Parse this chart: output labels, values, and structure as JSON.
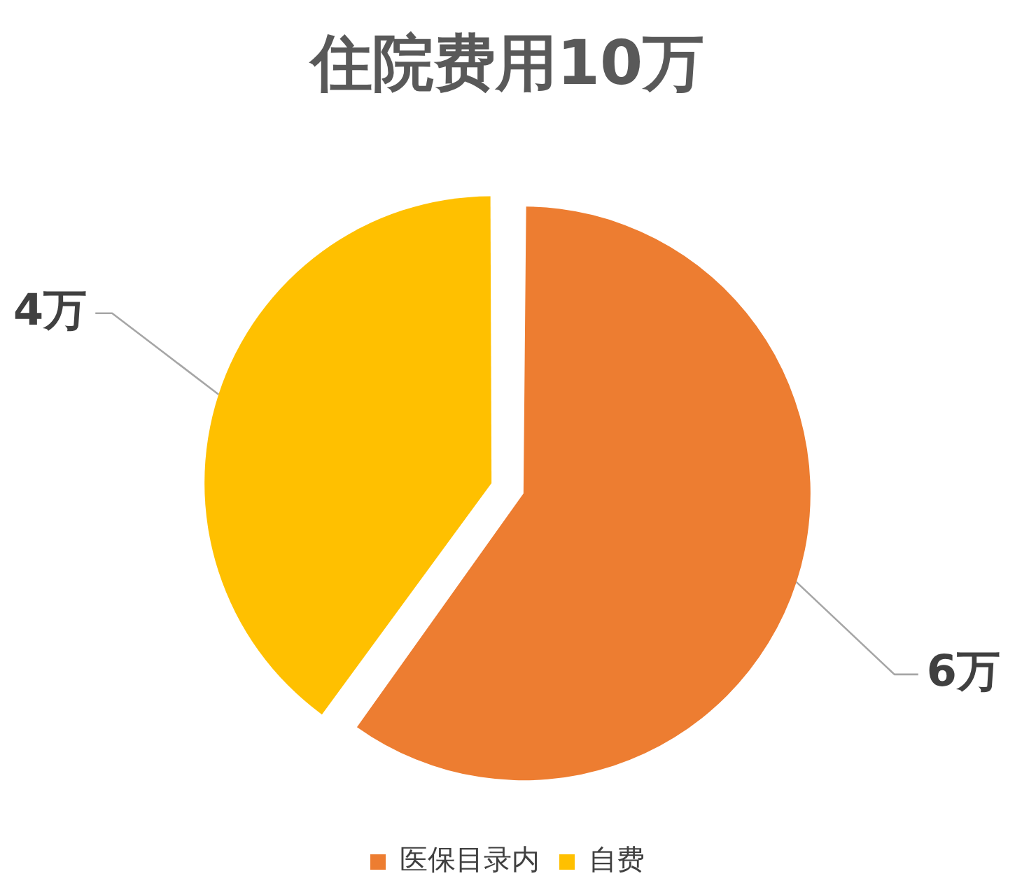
{
  "chart_data": {
    "type": "pie",
    "title": "住院费用10万",
    "categories": [
      "医保目录内",
      "自费"
    ],
    "values": [
      6,
      4
    ],
    "colors": [
      "#ed7d31",
      "#ffc000"
    ],
    "value_labels": [
      "6万",
      "4万"
    ],
    "legend": "bottom"
  }
}
